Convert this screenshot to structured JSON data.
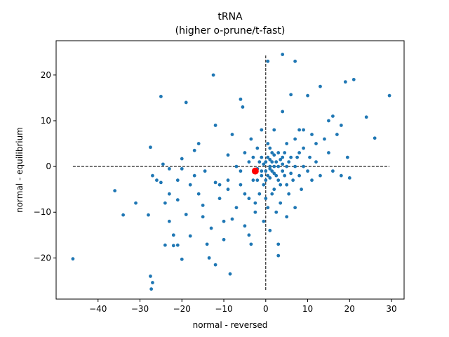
{
  "chart_data": {
    "type": "scatter",
    "title": "tRNA",
    "subtitle": "(higher o-prune/t-fast)",
    "xlabel": "normal - reversed",
    "ylabel": "normal - equilibrium",
    "xlim": [
      -50,
      33
    ],
    "ylim": [
      -29,
      27.5
    ],
    "xticks": [
      -40,
      -30,
      -20,
      -10,
      0,
      10,
      20,
      30
    ],
    "yticks": [
      -20,
      -10,
      0,
      10,
      20
    ],
    "grid": false,
    "point_color": "#1f77b4",
    "highlight_color": "#ff0000",
    "reference_lines": [
      {
        "orientation": "horizontal",
        "value": 0,
        "from": -46,
        "to": 29.5,
        "style": "dashed"
      },
      {
        "orientation": "vertical",
        "value": 0,
        "from": -27,
        "to": 24.5,
        "style": "dashed"
      }
    ],
    "highlight_point": {
      "x": -2.5,
      "y": -1
    },
    "points": [
      [
        -46,
        -20.2
      ],
      [
        -36,
        -5.3
      ],
      [
        -34,
        -10.6
      ],
      [
        -31,
        -8
      ],
      [
        -28,
        -10.6
      ],
      [
        -27.5,
        -24
      ],
      [
        -27.3,
        -26.8
      ],
      [
        -27,
        -25.4
      ],
      [
        -27.5,
        4.2
      ],
      [
        -27,
        -2
      ],
      [
        -26,
        -3
      ],
      [
        -25,
        -3.5
      ],
      [
        -25,
        15.3
      ],
      [
        -24,
        -8
      ],
      [
        -24,
        -17.2
      ],
      [
        -24.5,
        0.5
      ],
      [
        -23,
        -0.5
      ],
      [
        -23,
        -6
      ],
      [
        -23,
        -12
      ],
      [
        -22,
        -17.3
      ],
      [
        -22,
        -15
      ],
      [
        -21,
        -17.2
      ],
      [
        -21,
        -3
      ],
      [
        -21,
        -7.3
      ],
      [
        -20,
        -20.3
      ],
      [
        -20,
        1.7
      ],
      [
        -20,
        -0.5
      ],
      [
        -19,
        14
      ],
      [
        -19,
        -10.5
      ],
      [
        -18,
        -4
      ],
      [
        -18,
        -15.2
      ],
      [
        -17,
        3.5
      ],
      [
        -17,
        -2
      ],
      [
        -16,
        -6
      ],
      [
        -16,
        5
      ],
      [
        -15,
        -8.5
      ],
      [
        -15,
        -11
      ],
      [
        -14.5,
        -1
      ],
      [
        -14,
        -17
      ],
      [
        -13.5,
        -20
      ],
      [
        -13,
        -13.5
      ],
      [
        -12.5,
        20
      ],
      [
        -12,
        -3.5
      ],
      [
        -12,
        9
      ],
      [
        -12,
        -21.5
      ],
      [
        -11,
        -4
      ],
      [
        -11,
        -7
      ],
      [
        -10,
        -12
      ],
      [
        -10,
        -16
      ],
      [
        -9,
        -3
      ],
      [
        -9,
        2.5
      ],
      [
        -9,
        -5
      ],
      [
        -8.5,
        -23.5
      ],
      [
        -8,
        -11.5
      ],
      [
        -8,
        7
      ],
      [
        -7,
        -9
      ],
      [
        -7,
        0
      ],
      [
        -6,
        14.7
      ],
      [
        -6,
        -1
      ],
      [
        -6,
        -4
      ],
      [
        -5.5,
        13
      ],
      [
        -5,
        -6
      ],
      [
        -5,
        3
      ],
      [
        -5,
        -13
      ],
      [
        -4,
        1
      ],
      [
        -4,
        -7
      ],
      [
        -4,
        -15
      ],
      [
        -3.5,
        6
      ],
      [
        -3.5,
        -17
      ],
      [
        -3,
        -3
      ],
      [
        -3,
        2
      ],
      [
        -2.5,
        -8
      ],
      [
        -2.5,
        -10
      ],
      [
        -2,
        -0.5
      ],
      [
        -2,
        4
      ],
      [
        -2,
        -3
      ],
      [
        -1.5,
        1
      ],
      [
        -1.5,
        -6
      ],
      [
        -1,
        -2
      ],
      [
        -1,
        2
      ],
      [
        -1,
        -1
      ],
      [
        -1,
        8
      ],
      [
        -0.5,
        -4
      ],
      [
        -0.5,
        0.5
      ],
      [
        -0.5,
        -12
      ],
      [
        0,
        1
      ],
      [
        0,
        -1
      ],
      [
        0,
        -3
      ],
      [
        0,
        -7
      ],
      [
        0.5,
        2
      ],
      [
        0.5,
        -2
      ],
      [
        0.5,
        23
      ],
      [
        0.5,
        5
      ],
      [
        0.5,
        -9
      ],
      [
        1,
        0
      ],
      [
        1,
        -0.5
      ],
      [
        1,
        1.5
      ],
      [
        1,
        -2.5
      ],
      [
        1,
        4
      ],
      [
        1,
        -14
      ],
      [
        1.5,
        1
      ],
      [
        1.5,
        -1
      ],
      [
        1.5,
        3
      ],
      [
        1.5,
        -6
      ],
      [
        2,
        0
      ],
      [
        2,
        -1.5
      ],
      [
        2,
        2.5
      ],
      [
        2,
        -5
      ],
      [
        2,
        8
      ],
      [
        2.5,
        -2
      ],
      [
        2.5,
        1
      ],
      [
        2.5,
        -10
      ],
      [
        3,
        0
      ],
      [
        3,
        -3
      ],
      [
        3,
        3
      ],
      [
        3,
        -17
      ],
      [
        3,
        -19.5
      ],
      [
        3.5,
        1.5
      ],
      [
        3.5,
        -4
      ],
      [
        3.5,
        -8
      ],
      [
        4,
        0.5
      ],
      [
        4,
        -1
      ],
      [
        4,
        2
      ],
      [
        4,
        12
      ],
      [
        4,
        24.5
      ],
      [
        4.5,
        -2
      ],
      [
        4.5,
        3
      ],
      [
        5,
        0
      ],
      [
        5,
        -4
      ],
      [
        5,
        5
      ],
      [
        5,
        -11
      ],
      [
        5.5,
        1
      ],
      [
        5.5,
        -6
      ],
      [
        6,
        -1.5
      ],
      [
        6,
        2
      ],
      [
        6,
        15.7
      ],
      [
        6.5,
        -3
      ],
      [
        7,
        0
      ],
      [
        7,
        6
      ],
      [
        7,
        -9
      ],
      [
        7,
        23
      ],
      [
        7.5,
        2
      ],
      [
        8,
        -2
      ],
      [
        8,
        8
      ],
      [
        8,
        3
      ],
      [
        8.5,
        -5
      ],
      [
        9,
        0
      ],
      [
        9,
        8
      ],
      [
        9,
        4
      ],
      [
        10,
        -1
      ],
      [
        10,
        15.5
      ],
      [
        10.5,
        2
      ],
      [
        11,
        7
      ],
      [
        11,
        -3
      ],
      [
        12,
        5
      ],
      [
        12,
        1
      ],
      [
        13,
        17.5
      ],
      [
        13,
        -2
      ],
      [
        14,
        6
      ],
      [
        15,
        10
      ],
      [
        15,
        3
      ],
      [
        16,
        -1
      ],
      [
        16,
        11
      ],
      [
        17,
        7
      ],
      [
        18,
        9
      ],
      [
        18,
        -2
      ],
      [
        19,
        18.5
      ],
      [
        19.5,
        2
      ],
      [
        20,
        -2.5
      ],
      [
        21,
        19
      ],
      [
        24,
        10.8
      ],
      [
        26,
        6.2
      ],
      [
        29.5,
        15.5
      ]
    ]
  }
}
